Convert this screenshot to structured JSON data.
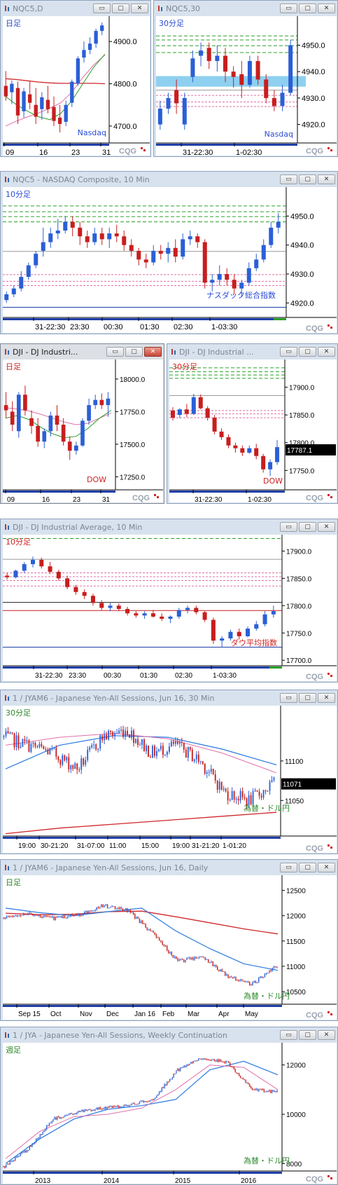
{
  "logo": "CQG",
  "colors": {
    "up": "#2a5fd6",
    "down": "#c81e1e",
    "green": "#2aa02a",
    "red": "#d0262a",
    "blue": "#2a7ae0",
    "pink": "#e070a8"
  },
  "windows": [
    {
      "title": "NQC5,D",
      "button_min": "▭",
      "button_max": "▢",
      "button_close": "✕"
    },
    {
      "title": "NQC5,30",
      "button_min": "▭",
      "button_max": "▢",
      "button_close": "✕"
    },
    {
      "title": "NQC5 - NASDAQ Composite, 10 Min",
      "button_min": "▭",
      "button_max": "▢",
      "button_close": "✕"
    },
    {
      "title": "DJI - DJ Industri...",
      "button_min": "▭",
      "button_max": "▢",
      "button_close": "✕"
    },
    {
      "title": "DJI - DJ Industrial ...",
      "button_min": "▭",
      "button_max": "▢",
      "button_close": "✕"
    },
    {
      "title": "DJI - DJ Industrial Average, 10 Min",
      "button_min": "▭",
      "button_max": "▢",
      "button_close": "✕"
    },
    {
      "title": "1 / JYAM6 - Japanese Yen-All Sessions, Jun 16, 30 Min",
      "button_min": "▭",
      "button_max": "▢",
      "button_close": "✕"
    },
    {
      "title": "1 / JYAM6 - Japanese Yen-All Sessions, Jun 16, Daily",
      "button_min": "▭",
      "button_max": "▢",
      "button_close": "✕"
    },
    {
      "title": "1 / JYA - Japanese Yen-All Sessions, Weekly Continuation",
      "button_min": "▭",
      "button_max": "▢",
      "button_close": "✕"
    }
  ],
  "chart_data": [
    {
      "type": "candlestick",
      "period": "日足",
      "label": "Nasdaq",
      "y_ticks": [
        "4900.0",
        "4800.0",
        "4700.0"
      ],
      "ylim": [
        4660,
        4960
      ],
      "x_ticks": [
        "09",
        "16",
        "23",
        "31"
      ],
      "ohlc": [
        [
          4795,
          4830,
          4760,
          4770
        ],
        [
          4780,
          4808,
          4752,
          4800
        ],
        [
          4790,
          4805,
          4705,
          4725
        ],
        [
          4735,
          4790,
          4720,
          4782
        ],
        [
          4775,
          4805,
          4740,
          4755
        ],
        [
          4750,
          4790,
          4705,
          4722
        ],
        [
          4740,
          4780,
          4715,
          4768
        ],
        [
          4762,
          4795,
          4730,
          4740
        ],
        [
          4745,
          4770,
          4700,
          4712
        ],
        [
          4720,
          4750,
          4685,
          4705
        ],
        [
          4710,
          4760,
          4700,
          4750
        ],
        [
          4755,
          4810,
          4745,
          4805
        ],
        [
          4800,
          4865,
          4795,
          4860
        ],
        [
          4862,
          4900,
          4850,
          4880
        ],
        [
          4880,
          4910,
          4870,
          4895
        ],
        [
          4895,
          4930,
          4885,
          4925
        ],
        [
          4925,
          4945,
          4915,
          4938
        ]
      ],
      "ma_pink": [
        4700,
        4712,
        4722,
        4731,
        4742,
        4755,
        4780,
        4815,
        4845,
        4868
      ],
      "ma_green": [
        4770,
        4750,
        4735,
        4722,
        4715,
        4730,
        4760,
        4800,
        4840,
        4870
      ],
      "ma_red": [
        4812,
        4810,
        4807,
        4804,
        4802,
        4801,
        4801,
        4801,
        4801,
        4800
      ]
    },
    {
      "type": "candlestick",
      "period": "30分足",
      "label": "Nasdaq",
      "y_ticks": [
        "4950.0",
        "4940.0",
        "4930.0",
        "4920.0"
      ],
      "ylim": [
        4913,
        4961
      ],
      "x_ticks": [
        "31-22:30",
        "1-02:30"
      ],
      "band": [
        4934.3,
        4938.3
      ],
      "levels_green": [
        4953.5,
        4952.0,
        4949.8,
        4947.2
      ],
      "levels_grey": [
        4933.0
      ],
      "levels_pink": [
        4931.0,
        4928.5,
        4926.8
      ],
      "ohlc": [
        [
          4920,
          4929,
          4918,
          4926
        ],
        [
          4926,
          4932,
          4924,
          4930
        ],
        [
          4933,
          4937,
          4924,
          4928
        ],
        [
          4920,
          4932,
          4918,
          4930
        ],
        [
          4938,
          4948,
          4936,
          4945
        ],
        [
          4946,
          4951,
          4942,
          4948
        ],
        [
          4949,
          4951,
          4941,
          4944
        ],
        [
          4944,
          4950,
          4940,
          4946
        ],
        [
          4946,
          4949,
          4936,
          4940
        ],
        [
          4940,
          4942,
          4934,
          4938
        ],
        [
          4939,
          4944,
          4930,
          4935
        ],
        [
          4935,
          4946,
          4934,
          4944
        ],
        [
          4944,
          4946,
          4935,
          4937
        ],
        [
          4937,
          4939,
          4928,
          4930
        ],
        [
          4930,
          4933,
          4925,
          4927
        ],
        [
          4927,
          4935,
          4925,
          4932
        ],
        [
          4932,
          4952,
          4931,
          4950
        ]
      ]
    },
    {
      "type": "candlestick",
      "period": "10分足",
      "label": "ナスダック総合指数",
      "y_ticks": [
        "4950.0",
        "4940.0",
        "4930.0",
        "4920.0"
      ],
      "ylim": [
        4915,
        4960
      ],
      "x_ticks": [
        "31-22:30",
        "23:30",
        "00:30",
        "01:30",
        "02:30",
        "1-03:30"
      ],
      "levels_green": [
        4953.5,
        4951.5,
        4949.8,
        4948.0
      ],
      "levels_grey": [
        4937.8
      ],
      "levels_pink": [
        4929.8,
        4927.5,
        4926.0
      ],
      "levels_blue": [
        4918.5
      ],
      "ohlc": [
        [
          4921,
          4924,
          4920,
          4923
        ],
        [
          4923,
          4926,
          4922,
          4925
        ],
        [
          4925,
          4931,
          4924,
          4929
        ],
        [
          4929,
          4934,
          4928,
          4933
        ],
        [
          4933,
          4938,
          4932,
          4937
        ],
        [
          4938,
          4946,
          4936,
          4941
        ],
        [
          4941,
          4946,
          4939,
          4944
        ],
        [
          4944,
          4949,
          4942,
          4945
        ],
        [
          4945,
          4950,
          4944,
          4948
        ],
        [
          4948,
          4950,
          4943,
          4946
        ],
        [
          4946,
          4948,
          4940,
          4943
        ],
        [
          4943,
          4945,
          4939,
          4941
        ],
        [
          4941,
          4946,
          4940,
          4944
        ],
        [
          4944,
          4946,
          4940,
          4942
        ],
        [
          4942,
          4946,
          4939,
          4944
        ],
        [
          4944,
          4947,
          4941,
          4943
        ],
        [
          4943,
          4945,
          4938,
          4940
        ],
        [
          4940,
          4942,
          4936,
          4938
        ],
        [
          4938,
          4939,
          4933,
          4935
        ],
        [
          4935,
          4937,
          4932,
          4934
        ],
        [
          4934,
          4940,
          4933,
          4938
        ],
        [
          4938,
          4940,
          4935,
          4937
        ],
        [
          4937,
          4941,
          4934,
          4939
        ],
        [
          4939,
          4942,
          4934,
          4936
        ],
        [
          4936,
          4944,
          4935,
          4942
        ],
        [
          4942,
          4945,
          4940,
          4943
        ],
        [
          4943,
          4944,
          4939,
          4941
        ],
        [
          4941,
          4942,
          4925,
          4927
        ],
        [
          4927,
          4930,
          4924,
          4928
        ],
        [
          4928,
          4933,
          4926,
          4930
        ],
        [
          4930,
          4932,
          4926,
          4928
        ],
        [
          4928,
          4930,
          4923,
          4925
        ],
        [
          4925,
          4928,
          4922,
          4927
        ],
        [
          4927,
          4934,
          4926,
          4932
        ],
        [
          4932,
          4937,
          4931,
          4935
        ],
        [
          4935,
          4942,
          4934,
          4940
        ],
        [
          4940,
          4948,
          4939,
          4946
        ],
        [
          4946,
          4951,
          4944,
          4948
        ]
      ]
    },
    {
      "type": "candlestick",
      "period": "日足",
      "label": "DOW",
      "y_ticks": [
        "18000.0",
        "17750.0",
        "17500.0",
        "17250.0"
      ],
      "ylim": [
        17150,
        18150
      ],
      "x_ticks": [
        "09",
        "16",
        "23",
        "31"
      ],
      "ohlc": [
        [
          17800,
          17900,
          17700,
          17760
        ],
        [
          17750,
          17830,
          17600,
          17650
        ],
        [
          17600,
          17900,
          17550,
          17880
        ],
        [
          17880,
          17950,
          17720,
          17760
        ],
        [
          17700,
          17760,
          17580,
          17640
        ],
        [
          17640,
          17700,
          17480,
          17520
        ],
        [
          17520,
          17620,
          17470,
          17600
        ],
        [
          17600,
          17750,
          17560,
          17720
        ],
        [
          17720,
          17800,
          17600,
          17650
        ],
        [
          17650,
          17700,
          17490,
          17520
        ],
        [
          17520,
          17560,
          17380,
          17450
        ],
        [
          17450,
          17520,
          17420,
          17490
        ],
        [
          17490,
          17700,
          17480,
          17680
        ],
        [
          17680,
          17850,
          17650,
          17800
        ],
        [
          17800,
          17880,
          17770,
          17840
        ],
        [
          17840,
          17890,
          17770,
          17800
        ],
        [
          17800,
          17900,
          17710,
          17850
        ]
      ],
      "ma_pink": [
        17780,
        17770,
        17755,
        17730,
        17700,
        17670,
        17650,
        17660,
        17700,
        17740
      ],
      "ma_green": [
        17700,
        17720,
        17690,
        17630,
        17580,
        17550,
        17560,
        17620,
        17700,
        17760
      ]
    },
    {
      "type": "candlestick",
      "period": "30分足",
      "label": "DOW",
      "last_price": "17787.1",
      "y_ticks": [
        "17900.0",
        "17850.0",
        "17800.0",
        "17750.0"
      ],
      "ylim": [
        17715,
        17950
      ],
      "x_ticks": [
        "31-22:30",
        "1-02:30"
      ],
      "levels_green": [
        17935,
        17928,
        17922,
        17916
      ],
      "levels_grey": [
        17885
      ],
      "levels_pink": [
        17858,
        17852,
        17845
      ],
      "ohlc": [
        [
          17858,
          17864,
          17840,
          17845
        ],
        [
          17850,
          17862,
          17844,
          17860
        ],
        [
          17860,
          17870,
          17846,
          17852
        ],
        [
          17852,
          17888,
          17850,
          17882
        ],
        [
          17882,
          17887,
          17860,
          17862
        ],
        [
          17862,
          17866,
          17840,
          17845
        ],
        [
          17845,
          17850,
          17815,
          17820
        ],
        [
          17820,
          17826,
          17805,
          17810
        ],
        [
          17810,
          17815,
          17790,
          17795
        ],
        [
          17795,
          17800,
          17782,
          17790
        ],
        [
          17790,
          17795,
          17776,
          17782
        ],
        [
          17782,
          17795,
          17780,
          17790
        ],
        [
          17790,
          17798,
          17770,
          17776
        ],
        [
          17776,
          17780,
          17746,
          17752
        ],
        [
          17752,
          17770,
          17740,
          17765
        ],
        [
          17765,
          17805,
          17760,
          17792
        ]
      ]
    },
    {
      "type": "candlestick",
      "period": "10分足",
      "label": "ダウ平均指数",
      "y_ticks": [
        "17900.0",
        "17850.0",
        "17800.0",
        "17750.0",
        "17700.0"
      ],
      "ylim": [
        17690,
        17930
      ],
      "x_ticks": [
        "31-22:30",
        "23:30",
        "00:30",
        "01:30",
        "02:30",
        "1-03:30"
      ],
      "levels_green": [
        17923
      ],
      "levels_grey": [
        17885
      ],
      "levels_pink": [
        17860,
        17853,
        17846,
        17836
      ],
      "levels_black": [
        17806
      ],
      "levels_red": [
        17791
      ],
      "levels_blue": [
        17724
      ],
      "ohlc": [
        [
          17855,
          17860,
          17848,
          17852
        ],
        [
          17852,
          17866,
          17850,
          17864
        ],
        [
          17864,
          17880,
          17860,
          17876
        ],
        [
          17876,
          17890,
          17870,
          17884
        ],
        [
          17884,
          17888,
          17868,
          17872
        ],
        [
          17872,
          17880,
          17858,
          17862
        ],
        [
          17862,
          17866,
          17846,
          17850
        ],
        [
          17850,
          17855,
          17830,
          17834
        ],
        [
          17834,
          17838,
          17820,
          17825
        ],
        [
          17825,
          17830,
          17812,
          17818
        ],
        [
          17818,
          17822,
          17800,
          17805
        ],
        [
          17805,
          17810,
          17792,
          17796
        ],
        [
          17796,
          17805,
          17790,
          17800
        ],
        [
          17800,
          17804,
          17790,
          17794
        ],
        [
          17794,
          17798,
          17782,
          17786
        ],
        [
          17786,
          17790,
          17778,
          17782
        ],
        [
          17782,
          17790,
          17776,
          17786
        ],
        [
          17786,
          17792,
          17778,
          17780
        ],
        [
          17780,
          17786,
          17772,
          17776
        ],
        [
          17776,
          17782,
          17768,
          17780
        ],
        [
          17780,
          17796,
          17776,
          17792
        ],
        [
          17792,
          17800,
          17786,
          17796
        ],
        [
          17796,
          17800,
          17784,
          17788
        ],
        [
          17788,
          17790,
          17770,
          17774
        ],
        [
          17774,
          17778,
          17730,
          17736
        ],
        [
          17736,
          17744,
          17724,
          17740
        ],
        [
          17740,
          17756,
          17736,
          17752
        ],
        [
          17752,
          17758,
          17738,
          17744
        ],
        [
          17744,
          17762,
          17742,
          17758
        ],
        [
          17758,
          17772,
          17754,
          17766
        ],
        [
          17766,
          17790,
          17762,
          17784
        ],
        [
          17784,
          17800,
          17778,
          17790
        ]
      ]
    },
    {
      "type": "candlestick",
      "period": "30分足",
      "label": "為替・ドル円",
      "last_price": "11071",
      "y_ticks": [
        "11100",
        "11050"
      ],
      "ylim": [
        11005,
        11170
      ],
      "x_ticks": [
        "19:00",
        "30-21:20",
        "31-07:00",
        "11:00",
        "15:00",
        "19:00",
        "31-21:20",
        "1-01:20"
      ],
      "trend_red": [
        11008,
        11015,
        11020,
        11025,
        11030,
        11035
      ],
      "trend_blue": [
        11090,
        11120,
        11132,
        11130,
        11115,
        11095
      ],
      "ma_pink": [
        11120,
        11130,
        11135,
        11128,
        11110,
        11085
      ]
    },
    {
      "type": "candlestick",
      "period": "日足",
      "label": "為替・ドル円",
      "y_ticks": [
        "12500",
        "12000",
        "11500",
        "11000",
        "10500"
      ],
      "ylim": [
        10250,
        12800
      ],
      "x_ticks": [
        "Sep 15",
        "Oct",
        "Nov",
        "Dec",
        "Jan 16",
        "Feb",
        "Mar",
        "Apr",
        "May"
      ],
      "ma_red": [
        12050,
        12020,
        12030,
        12080,
        12090,
        11980,
        11860,
        11740,
        11640
      ],
      "ma_blue": [
        12150,
        12060,
        12000,
        12080,
        12150,
        11700,
        11350,
        11050,
        10920
      ]
    },
    {
      "type": "candlestick",
      "period": "週足",
      "label": "為替・ドル円",
      "y_ticks": [
        "12000",
        "10000",
        "8000"
      ],
      "ylim": [
        7700,
        12900
      ],
      "x_ticks": [
        "2013",
        "2014",
        "2015",
        "2016"
      ],
      "ma_blue": [
        8000,
        9000,
        9800,
        10200,
        10350,
        10600,
        11800,
        12150,
        11600
      ],
      "ma_pink": [
        8200,
        9300,
        9900,
        10000,
        10250,
        11000,
        12000,
        11900,
        11000
      ]
    }
  ]
}
